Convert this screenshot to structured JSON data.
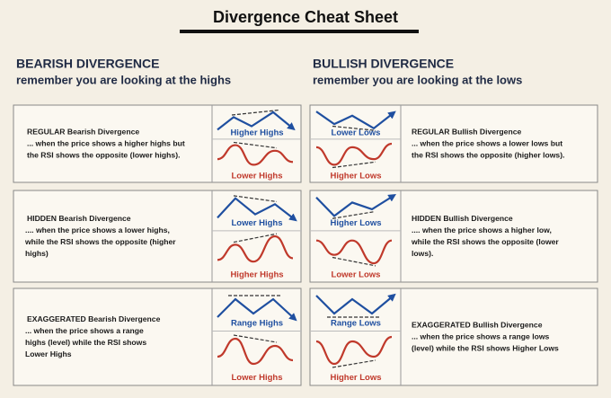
{
  "title": "Divergence Cheat Sheet",
  "bearish": {
    "heading": "BEARISH DIVERGENCE",
    "subheading": "remember you are looking at the highs"
  },
  "bullish": {
    "heading": "BULLISH DIVERGENCE",
    "subheading": "remember you are looking at the lows"
  },
  "rows": [
    {
      "bearish": {
        "lines": [
          "REGULAR Bearish Divergence",
          "... when the price shows a higher highs but",
          "the RSI shows the opposite (lower highs)."
        ],
        "top_label": "Higher Highs",
        "bottom_label": "Lower Highs"
      },
      "bullish": {
        "lines": [
          "REGULAR Bullish Divergence",
          "... when the price shows a lower lows but",
          "the RSI shows the opposite (higher lows)."
        ],
        "top_label": "Lower Lows",
        "bottom_label": "Higher Lows"
      }
    },
    {
      "bearish": {
        "lines": [
          "HIDDEN Bearish Divergence",
          ".... when the price shows a lower highs,",
          "while the RSI shows the opposite (higher",
          "highs)"
        ],
        "top_label": "Lower Highs",
        "bottom_label": "Higher Highs"
      },
      "bullish": {
        "lines": [
          "HIDDEN Bullish Divergence",
          ".... when the price shows a higher low,",
          "while the RSI shows the opposite (lower",
          "lows)."
        ],
        "top_label": "Higher Lows",
        "bottom_label": "Lower Lows"
      }
    },
    {
      "bearish": {
        "lines": [
          "EXAGGERATED Bearish Divergence",
          "... when the price shows a range",
          "highs (level) while the RSI shows",
          "Lower Highs"
        ],
        "top_label": "Range Highs",
        "bottom_label": "Lower Highs"
      },
      "bullish": {
        "lines": [
          "EXAGGERATED Bullish Divergence",
          "... when the price shows a range lows",
          "(level) while the RSI shows Higher Lows"
        ],
        "top_label": "Range Lows",
        "bottom_label": "Higher Lows"
      }
    }
  ]
}
